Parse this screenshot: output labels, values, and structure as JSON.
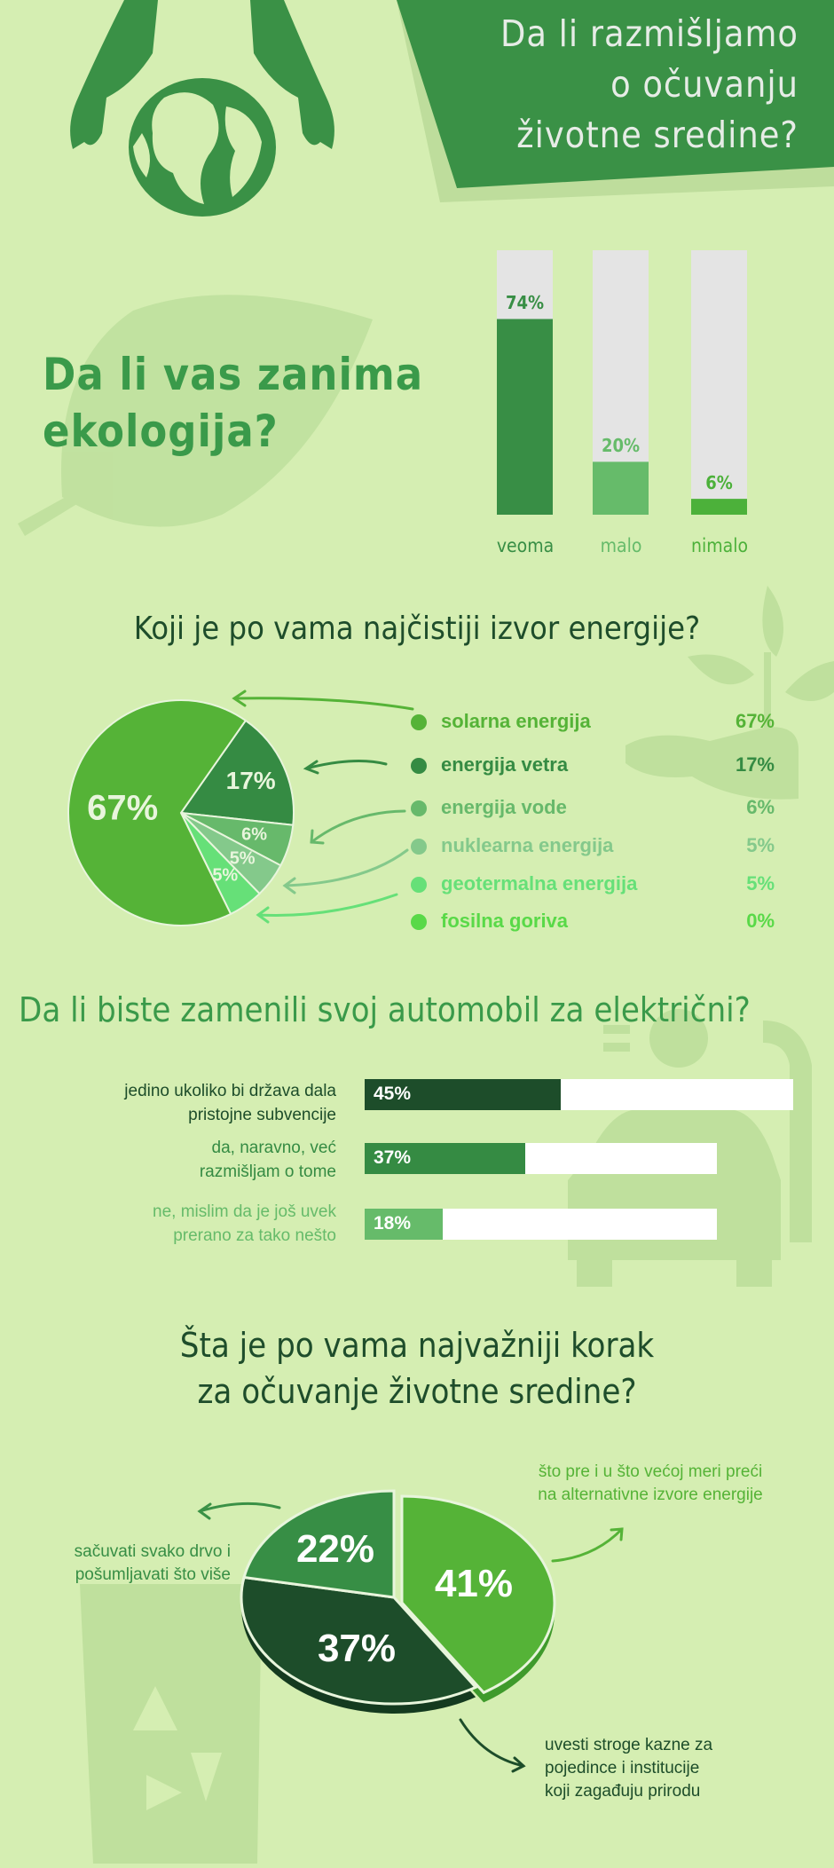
{
  "colors": {
    "background": "#d5eeb2",
    "banner": "#3a9146",
    "dark": "#1e4d2b",
    "accent": "#3a9a4a",
    "bar_track": "#e4e4e4"
  },
  "header": {
    "title_lines": [
      "Da li razmišljamo",
      "o očuvanju",
      "životne sredine?"
    ]
  },
  "chart_data": [
    {
      "type": "bar",
      "title_lines": [
        "Da li vas zanima",
        "ekologija?"
      ],
      "categories": [
        "veoma",
        "malo",
        "nimalo"
      ],
      "values": [
        74,
        20,
        6
      ],
      "labels": [
        "74%",
        "20%",
        "6%"
      ],
      "colors": [
        "#388e45",
        "#66bb6a",
        "#4cb13a"
      ],
      "ylim": [
        0,
        100
      ]
    },
    {
      "type": "pie",
      "title": "Koji je po vama najčistiji izvor energije?",
      "categories": [
        "solarna energija",
        "energija vetra",
        "energija vode",
        "nuklearna energija",
        "geotermalna energija",
        "fosilna goriva"
      ],
      "values": [
        67,
        17,
        6,
        5,
        5,
        0
      ],
      "labels": [
        "67%",
        "17%",
        "6%",
        "5%",
        "5%",
        "0%"
      ],
      "colors": [
        "#55b337",
        "#358b43",
        "#67b96b",
        "#84c98b",
        "#66e078",
        "#59d948"
      ],
      "legend": "right"
    },
    {
      "type": "bar",
      "orientation": "horizontal",
      "title": "Da li biste zamenili svoj automobil za električni?",
      "categories": [
        [
          "jedino ukoliko bi država dala",
          "pristojne subvencije"
        ],
        [
          "da, naravno, već",
          "razmišljam o tome"
        ],
        [
          "ne, mislim da je još uvek",
          "prerano za tako nešto"
        ]
      ],
      "values": [
        45,
        37,
        18
      ],
      "labels": [
        "45%",
        "37%",
        "18%"
      ],
      "colors": [
        "#1d4d2a",
        "#358b43",
        "#66bb6a"
      ],
      "xlim": [
        0,
        100
      ]
    },
    {
      "type": "pie",
      "title_lines": [
        "Šta je po vama najvažniji korak",
        "za očuvanje životne sredine?"
      ],
      "categories": [
        [
          "što pre i u što većoj meri preći",
          "na alternativne izvore energije"
        ],
        [
          "uvesti stroge kazne za",
          "pojedince i institucije",
          "koji zagađuju prirodu"
        ],
        [
          "sačuvati svako drvo i",
          "pošumljavati što više"
        ]
      ],
      "values": [
        41,
        37,
        22
      ],
      "labels": [
        "41%",
        "37%",
        "22%"
      ],
      "colors": [
        "#55b337",
        "#1d4d2a",
        "#378e45"
      ]
    }
  ]
}
